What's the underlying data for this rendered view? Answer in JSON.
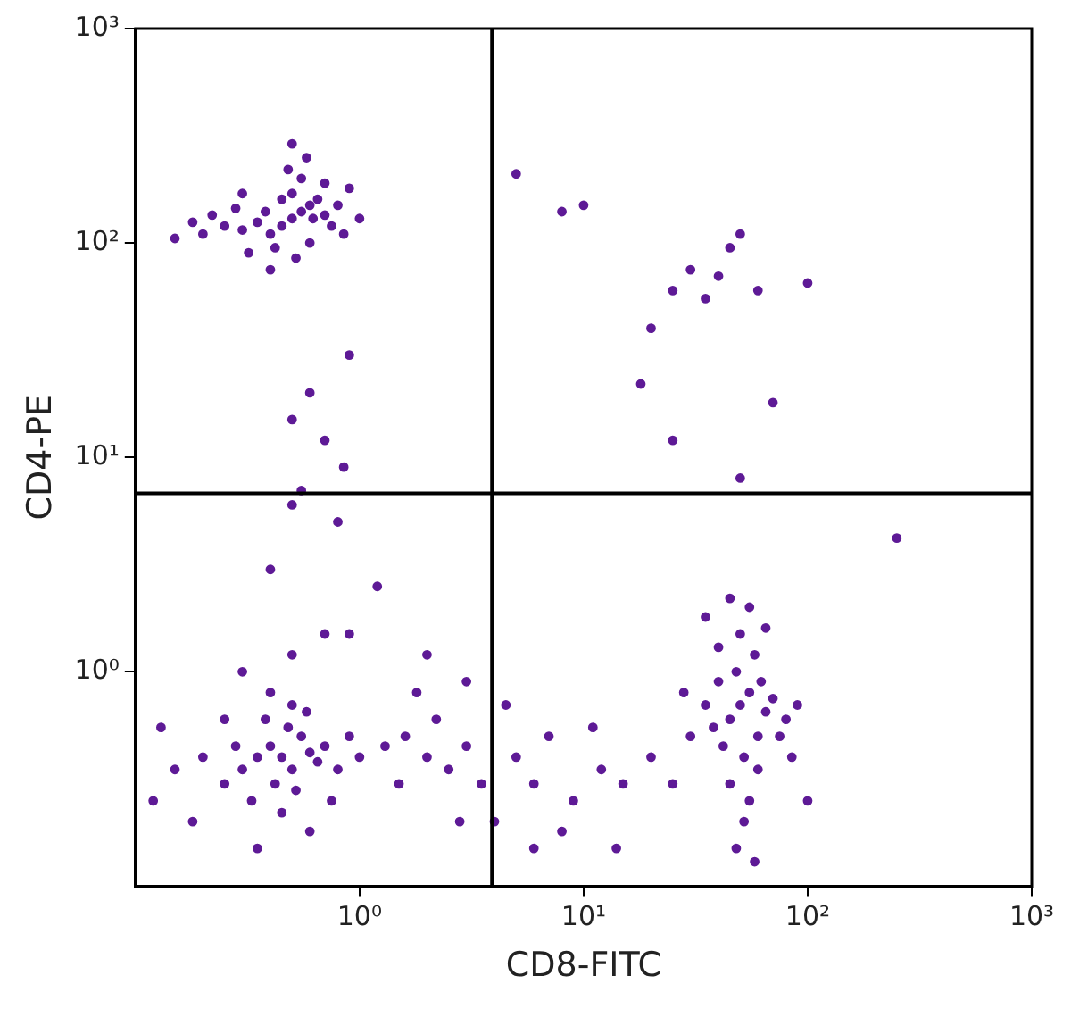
{
  "chart_data": {
    "type": "scatter",
    "xlabel": "CD8-FITC",
    "ylabel": "CD4-PE",
    "log": "xy",
    "grid": false,
    "legend": false,
    "marker": "circle",
    "xlim": [
      0.1,
      1000
    ],
    "ylim": [
      0.1,
      1000
    ],
    "xticks": [
      {
        "value": 1,
        "label": "10⁰"
      },
      {
        "value": 10,
        "label": "10¹"
      },
      {
        "value": 100,
        "label": "10²"
      },
      {
        "value": 1000,
        "label": "10³"
      }
    ],
    "yticks": [
      {
        "value": 1,
        "label": "10⁰"
      },
      {
        "value": 10,
        "label": "10¹"
      },
      {
        "value": 100,
        "label": "10²"
      },
      {
        "value": 1000,
        "label": "10³"
      }
    ],
    "ref_lines": [
      {
        "axis": "x",
        "value": 3.9,
        "color": "#000000"
      },
      {
        "axis": "y",
        "value": 6.8,
        "color": "#000000"
      }
    ],
    "series": [
      {
        "color": "#5e1a96",
        "x": [
          0.5,
          0.45,
          0.55,
          0.6,
          0.4,
          0.35,
          0.3,
          0.65,
          0.7,
          0.5,
          0.42,
          0.25,
          0.2,
          0.15,
          0.8,
          0.9,
          0.55,
          0.48,
          0.6,
          0.38,
          0.32,
          0.75,
          0.28,
          0.52,
          0.45,
          0.62,
          0.22,
          0.18,
          0.85,
          1.0,
          0.58,
          0.4,
          0.7,
          0.3,
          0.5,
          0.6,
          0.5,
          0.9,
          0.55,
          0.85,
          0.7,
          5,
          8,
          10,
          30,
          40,
          50,
          25,
          60,
          100,
          45,
          35,
          20,
          25,
          18,
          70,
          50,
          250,
          0.5,
          0.8,
          0.4,
          1.2,
          0.9,
          2,
          3,
          0.45,
          0.4,
          0.5,
          0.55,
          0.35,
          0.6,
          0.42,
          0.48,
          0.3,
          0.65,
          0.38,
          0.52,
          0.7,
          0.28,
          0.5,
          0.45,
          0.33,
          0.8,
          0.25,
          0.58,
          0.4,
          0.9,
          0.2,
          0.15,
          0.12,
          0.18,
          0.6,
          0.35,
          0.75,
          1.0,
          0.3,
          0.5,
          0.7,
          0.25,
          0.13,
          1.3,
          1.6,
          2,
          2.5,
          3,
          1.5,
          2.2,
          3.5,
          5,
          6,
          7,
          9,
          12,
          15,
          8,
          4,
          11,
          20,
          2.8,
          1.8,
          4.5,
          6,
          14,
          50,
          45,
          55,
          60,
          40,
          48,
          52,
          65,
          35,
          58,
          42,
          50,
          62,
          38,
          70,
          45,
          55,
          52,
          48,
          60,
          30,
          75,
          80,
          40,
          55,
          65,
          45,
          58,
          85,
          28,
          90,
          100,
          25,
          35
        ],
        "values": [
          130,
          120,
          140,
          150,
          110,
          125,
          115,
          160,
          135,
          170,
          95,
          120,
          110,
          105,
          150,
          180,
          200,
          220,
          100,
          140,
          90,
          120,
          145,
          85,
          160,
          130,
          135,
          125,
          110,
          130,
          250,
          75,
          190,
          170,
          290,
          20,
          15,
          30,
          7,
          9,
          12,
          210,
          140,
          150,
          75,
          70,
          110,
          60,
          60,
          65,
          95,
          55,
          40,
          12,
          22,
          18,
          8,
          4.2,
          6,
          5,
          3,
          2.5,
          1.5,
          1.2,
          0.9,
          0.4,
          0.45,
          0.35,
          0.5,
          0.4,
          0.42,
          0.3,
          0.55,
          0.35,
          0.38,
          0.6,
          0.28,
          0.45,
          0.45,
          0.7,
          0.22,
          0.25,
          0.35,
          0.3,
          0.65,
          0.8,
          0.5,
          0.4,
          0.35,
          0.25,
          0.2,
          0.18,
          0.15,
          0.25,
          0.4,
          1.0,
          1.2,
          1.5,
          0.6,
          0.55,
          0.45,
          0.5,
          0.4,
          0.35,
          0.45,
          0.3,
          0.6,
          0.3,
          0.4,
          0.3,
          0.5,
          0.25,
          0.35,
          0.3,
          0.18,
          0.2,
          0.55,
          0.4,
          0.2,
          0.8,
          0.7,
          0.15,
          0.15,
          0.7,
          0.6,
          0.8,
          0.5,
          0.9,
          1.0,
          0.4,
          0.65,
          0.7,
          1.2,
          0.45,
          1.5,
          0.9,
          0.55,
          0.75,
          0.3,
          0.25,
          0.2,
          0.15,
          0.35,
          0.5,
          0.5,
          0.6,
          1.3,
          2.0,
          1.6,
          2.2,
          0.13,
          0.4,
          0.8,
          0.7,
          0.25,
          0.3,
          1.8
        ]
      }
    ]
  }
}
